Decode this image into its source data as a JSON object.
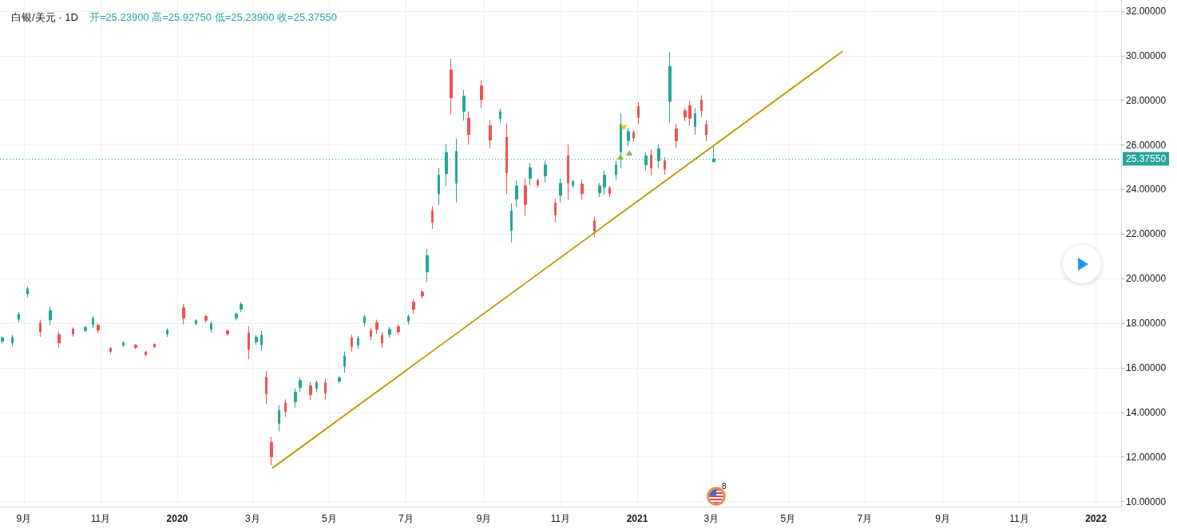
{
  "chart_data": {
    "type": "candlestick",
    "title": "白银/美元 · 1D",
    "subtitle": "开=25.23900 高=25.92750 低=25.23900 收=25.37550",
    "annotations": [
      "8"
    ],
    "x": [
      "2019-08-15",
      "2019-08-23",
      "2019-08-28",
      "2019-09-04",
      "2019-09-14",
      "2019-09-22",
      "2019-09-29",
      "2019-10-10",
      "2019-10-20",
      "2019-10-26",
      "2019-10-30",
      "2019-11-09",
      "2019-11-19",
      "2019-11-29",
      "2019-12-07",
      "2019-12-14",
      "2019-12-24",
      "2020-01-06",
      "2020-01-16",
      "2020-01-24",
      "2020-01-28",
      "2020-02-10",
      "2020-02-17",
      "2020-02-21",
      "2020-02-27",
      "2020-03-04",
      "2020-03-08",
      "2020-03-12",
      "2020-03-16",
      "2020-03-22",
      "2020-03-27",
      "2020-04-04",
      "2020-04-08",
      "2020-04-16",
      "2020-04-21",
      "2020-04-28",
      "2020-05-09",
      "2020-05-13",
      "2020-05-19",
      "2020-05-24",
      "2020-05-29",
      "2020-06-03",
      "2020-06-08",
      "2020-06-12",
      "2020-06-18",
      "2020-06-25",
      "2020-07-03",
      "2020-07-07",
      "2020-07-14",
      "2020-07-18",
      "2020-07-22",
      "2020-07-27",
      "2020-08-02",
      "2020-08-06",
      "2020-08-10",
      "2020-08-16",
      "2020-08-20",
      "2020-08-30",
      "2020-09-06",
      "2020-09-14",
      "2020-09-19",
      "2020-09-23",
      "2020-09-27",
      "2020-10-04",
      "2020-10-08",
      "2020-10-14",
      "2020-10-20",
      "2020-10-28",
      "2020-11-01",
      "2020-11-07",
      "2020-11-11",
      "2020-11-18",
      "2020-11-28",
      "2020-12-02",
      "2020-12-06",
      "2020-12-10",
      "2020-12-15",
      "2020-12-19",
      "2020-12-25",
      "2020-12-29",
      "2021-01-02",
      "2021-01-08",
      "2021-01-12",
      "2021-01-18",
      "2021-01-23",
      "2021-01-27",
      "2021-02-01",
      "2021-02-08",
      "2021-02-12",
      "2021-02-16",
      "2021-02-21",
      "2021-02-25",
      "2021-03-03"
    ],
    "ohlc": [
      [
        17.19,
        17.41,
        17.09,
        17.35
      ],
      [
        17.11,
        17.47,
        16.96,
        17.37
      ],
      [
        18.17,
        18.51,
        18.03,
        18.41
      ],
      [
        19.31,
        19.65,
        19.17,
        19.55
      ],
      [
        18.01,
        18.16,
        17.39,
        17.62
      ],
      [
        18.15,
        18.74,
        17.89,
        18.57
      ],
      [
        17.48,
        17.62,
        16.9,
        17.12
      ],
      [
        17.73,
        17.81,
        17.39,
        17.52
      ],
      [
        17.67,
        17.87,
        17.59,
        17.81
      ],
      [
        17.95,
        18.33,
        17.78,
        18.22
      ],
      [
        17.91,
        18.0,
        17.56,
        17.69
      ],
      [
        16.88,
        16.94,
        16.64,
        16.73
      ],
      [
        17.02,
        17.19,
        16.94,
        17.14
      ],
      [
        17.02,
        17.06,
        16.84,
        16.91
      ],
      [
        16.71,
        16.76,
        16.52,
        16.59
      ],
      [
        17.05,
        17.09,
        16.88,
        16.94
      ],
      [
        17.5,
        17.77,
        17.38,
        17.69
      ],
      [
        18.69,
        18.87,
        17.95,
        18.23
      ],
      [
        17.98,
        18.18,
        17.9,
        18.12
      ],
      [
        18.31,
        18.38,
        18.02,
        18.13
      ],
      [
        17.73,
        18.09,
        17.58,
        17.99
      ],
      [
        17.66,
        17.71,
        17.44,
        17.52
      ],
      [
        18.24,
        18.48,
        18.13,
        18.41
      ],
      [
        18.63,
        18.94,
        18.49,
        18.85
      ],
      [
        17.57,
        17.87,
        16.38,
        16.83
      ],
      [
        17.16,
        17.47,
        17.03,
        17.38
      ],
      [
        17.03,
        17.65,
        16.76,
        17.47
      ],
      [
        15.57,
        15.86,
        14.39,
        14.83
      ],
      [
        12.65,
        12.9,
        11.63,
        12.01
      ],
      [
        13.5,
        14.32,
        13.15,
        14.09
      ],
      [
        14.42,
        14.58,
        13.8,
        14.03
      ],
      [
        14.47,
        15.08,
        14.21,
        14.91
      ],
      [
        15.11,
        15.56,
        14.91,
        15.43
      ],
      [
        15.19,
        15.35,
        14.55,
        14.79
      ],
      [
        15.07,
        15.44,
        14.91,
        15.33
      ],
      [
        15.32,
        15.5,
        14.58,
        14.86
      ],
      [
        15.4,
        15.62,
        15.3,
        15.56
      ],
      [
        16.07,
        16.73,
        15.78,
        16.54
      ],
      [
        17.34,
        17.49,
        16.72,
        16.95
      ],
      [
        17.02,
        17.43,
        16.85,
        17.31
      ],
      [
        18.02,
        18.4,
        17.86,
        18.29
      ],
      [
        17.68,
        17.79,
        17.23,
        17.4
      ],
      [
        18.03,
        18.16,
        17.53,
        17.72
      ],
      [
        17.45,
        17.59,
        16.91,
        17.11
      ],
      [
        17.49,
        17.83,
        17.35,
        17.73
      ],
      [
        17.85,
        17.94,
        17.47,
        17.61
      ],
      [
        18.08,
        18.39,
        17.94,
        18.3
      ],
      [
        18.95,
        19.08,
        18.42,
        18.62
      ],
      [
        19.4,
        19.47,
        19.11,
        19.22
      ],
      [
        20.3,
        21.34,
        19.85,
        21.04
      ],
      [
        23.04,
        23.24,
        22.23,
        22.53
      ],
      [
        23.8,
        24.97,
        23.3,
        24.64
      ],
      [
        24.71,
        26.04,
        24.14,
        25.66
      ],
      [
        29.36,
        29.86,
        27.36,
        28.11
      ],
      [
        24.28,
        26.28,
        23.42,
        25.71
      ],
      [
        27.5,
        28.46,
        27.09,
        28.19
      ],
      [
        27.2,
        27.5,
        26.02,
        26.46
      ],
      [
        28.65,
        28.9,
        27.65,
        28.03
      ],
      [
        26.86,
        27.12,
        25.84,
        26.22
      ],
      [
        27.18,
        27.62,
        26.99,
        27.49
      ],
      [
        26.34,
        26.97,
        23.8,
        24.75
      ],
      [
        22.16,
        23.38,
        21.63,
        23.03
      ],
      [
        23.57,
        24.4,
        23.21,
        24.16
      ],
      [
        24.16,
        24.49,
        22.83,
        23.33
      ],
      [
        24.49,
        25.18,
        24.2,
        24.98
      ],
      [
        24.41,
        24.49,
        24.08,
        24.2
      ],
      [
        24.61,
        25.29,
        24.32,
        25.1
      ],
      [
        23.39,
        23.6,
        22.53,
        22.85
      ],
      [
        23.74,
        24.49,
        23.42,
        24.28
      ],
      [
        25.52,
        26.02,
        23.54,
        24.28
      ],
      [
        24.19,
        24.43,
        24.08,
        24.36
      ],
      [
        24.25,
        24.43,
        23.54,
        23.81
      ],
      [
        22.59,
        22.77,
        21.87,
        22.14
      ],
      [
        23.85,
        24.29,
        23.66,
        24.16
      ],
      [
        24.1,
        24.85,
        23.78,
        24.64
      ],
      [
        24.06,
        24.16,
        23.66,
        23.81
      ],
      [
        24.66,
        25.27,
        24.4,
        25.1
      ],
      [
        25.69,
        27.41,
        24.95,
        26.92
      ],
      [
        26.19,
        26.76,
        25.95,
        26.6
      ],
      [
        26.56,
        26.66,
        26.14,
        26.3
      ],
      [
        27.72,
        27.92,
        26.94,
        27.23
      ],
      [
        25.1,
        25.68,
        24.85,
        25.51
      ],
      [
        25.55,
        25.78,
        24.61,
        24.96
      ],
      [
        25.29,
        26.04,
        24.97,
        25.83
      ],
      [
        25.29,
        25.45,
        24.67,
        24.9
      ],
      [
        27.95,
        30.15,
        27.0,
        29.52
      ],
      [
        26.72,
        26.94,
        25.86,
        26.18
      ],
      [
        27.53,
        27.65,
        27.06,
        27.24
      ],
      [
        27.75,
        27.97,
        26.85,
        27.19
      ],
      [
        26.82,
        27.65,
        26.46,
        27.41
      ],
      [
        28.02,
        28.22,
        27.23,
        27.53
      ],
      [
        26.92,
        27.11,
        26.16,
        26.45
      ],
      [
        25.239,
        25.9275,
        25.239,
        25.3755
      ]
    ],
    "colors": [
      "#26a69a",
      "#26a69a",
      "#26a69a",
      "#26a69a",
      "#ef5350",
      "#26a69a",
      "#ef5350",
      "#ef5350",
      "#26a69a",
      "#26a69a",
      "#ef5350",
      "#ef5350",
      "#26a69a",
      "#ef5350",
      "#ef5350",
      "#ef5350",
      "#26a69a",
      "#ef5350",
      "#26a69a",
      "#ef5350",
      "#26a69a",
      "#ef5350",
      "#26a69a",
      "#26a69a",
      "#ef5350",
      "#26a69a",
      "#26a69a",
      "#ef5350",
      "#ef5350",
      "#26a69a",
      "#ef5350",
      "#26a69a",
      "#26a69a",
      "#ef5350",
      "#26a69a",
      "#ef5350",
      "#26a69a",
      "#26a69a",
      "#ef5350",
      "#26a69a",
      "#26a69a",
      "#ef5350",
      "#ef5350",
      "#ef5350",
      "#26a69a",
      "#ef5350",
      "#26a69a",
      "#ef5350",
      "#ef5350",
      "#26a69a",
      "#ef5350",
      "#26a69a",
      "#26a69a",
      "#ef5350",
      "#26a69a",
      "#26a69a",
      "#ef5350",
      "#ef5350",
      "#ef5350",
      "#26a69a",
      "#ef5350",
      "#26a69a",
      "#26a69a",
      "#ef5350",
      "#26a69a",
      "#ef5350",
      "#26a69a",
      "#ef5350",
      "#26a69a",
      "#ef5350",
      "#26a69a",
      "#ef5350",
      "#ef5350",
      "#26a69a",
      "#26a69a",
      "#ef5350",
      "#26a69a",
      "#26a69a",
      "#26a69a",
      "#ef5350",
      "#ef5350",
      "#26a69a",
      "#ef5350",
      "#26a69a",
      "#ef5350",
      "#26a69a",
      "#ef5350",
      "#ef5350",
      "#ef5350",
      "#26a69a",
      "#ef5350",
      "#ef5350",
      "#26a69a"
    ],
    "series": [
      {
        "type": "line",
        "x": [
          "2020-03-17",
          "2021-06-13"
        ],
        "values": [
          11.51,
          30.18
        ],
        "color": "#c49b0e"
      }
    ],
    "xlim": [
      "2019-08-13",
      "2022-01-21"
    ],
    "xticks": [
      {
        "value": "2019-09-01",
        "label": "9月"
      },
      {
        "value": "2019-11-01",
        "label": "11月"
      },
      {
        "value": "2020-01-01",
        "label": "2020"
      },
      {
        "value": "2020-03-01",
        "label": "3月"
      },
      {
        "value": "2020-05-01",
        "label": "5月"
      },
      {
        "value": "2020-07-01",
        "label": "7月"
      },
      {
        "value": "2020-09-01",
        "label": "9月"
      },
      {
        "value": "2020-11-01",
        "label": "11月"
      },
      {
        "value": "2021-01-01",
        "label": "2021"
      },
      {
        "value": "2021-03-01",
        "label": "3月"
      },
      {
        "value": "2021-05-01",
        "label": "5月"
      },
      {
        "value": "2021-07-01",
        "label": "7月"
      },
      {
        "value": "2021-09-01",
        "label": "9月"
      },
      {
        "value": "2021-11-01",
        "label": "11月"
      },
      {
        "value": "2022-01-01",
        "label": "2022"
      }
    ],
    "ylim": [
      9.77,
      32.5
    ],
    "yticks": [
      {
        "value": 10,
        "label": "10.00000"
      },
      {
        "value": 12,
        "label": "12.00000"
      },
      {
        "value": 14,
        "label": "14.00000"
      },
      {
        "value": 16,
        "label": "16.00000"
      },
      {
        "value": 18,
        "label": "18.00000"
      },
      {
        "value": 20,
        "label": "20.00000"
      },
      {
        "value": 22,
        "label": "22.00000"
      },
      {
        "value": 24,
        "label": "24.00000"
      },
      {
        "value": 26,
        "label": "26.00000"
      },
      {
        "value": 28,
        "label": "28.00000"
      },
      {
        "value": 30,
        "label": "30.00000"
      },
      {
        "value": 32,
        "label": "32.00000"
      }
    ],
    "grid": true,
    "ref_lines": [
      {
        "axis": "y",
        "value": 25.3755,
        "label": "25.37550",
        "color": "#26a69a",
        "line_style": "dotted"
      }
    ]
  }
}
